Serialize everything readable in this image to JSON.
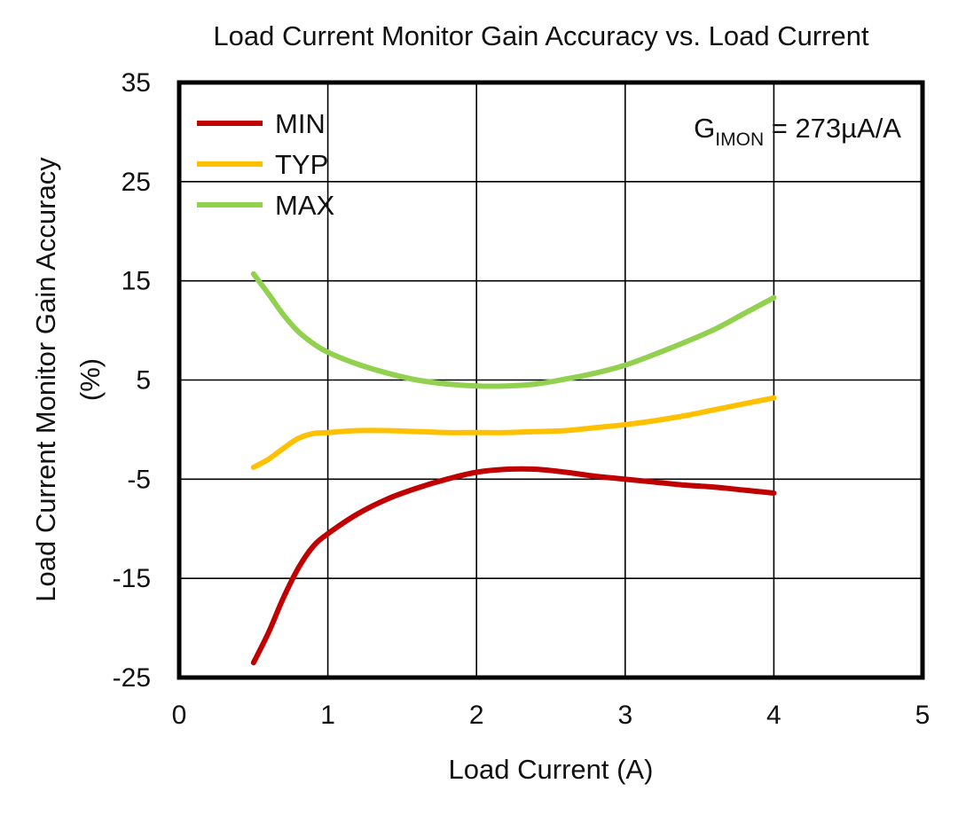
{
  "chart_data": {
    "type": "line",
    "title": "Load Current Monitor Gain Accuracy vs. Load Current",
    "xlabel": "Load Current (A)",
    "ylabel": "Load Current Monitor Gain Accuracy",
    "ylabel_unit": "(%)",
    "xlim": [
      0,
      5
    ],
    "ylim": [
      -25,
      35
    ],
    "xticks": [
      0,
      1,
      2,
      3,
      4,
      5
    ],
    "xtick_labels": [
      "0",
      "1",
      "2",
      "3",
      "4",
      "5"
    ],
    "yticks": [
      35,
      25,
      15,
      5,
      -5,
      -15,
      -25
    ],
    "ytick_labels": [
      "35",
      "25",
      "15",
      "5",
      "-5",
      "-15",
      "-25"
    ],
    "grid": true,
    "legend_position": "top-left",
    "annotation": {
      "main": "G",
      "subscript": "IMON",
      "rest": " = 273µA/A"
    },
    "series": [
      {
        "name": "MIN",
        "color": "#c00000",
        "x": [
          0.5,
          0.6,
          0.7,
          0.8,
          0.9,
          1.0,
          1.2,
          1.4,
          1.6,
          1.8,
          2.0,
          2.2,
          2.4,
          2.6,
          2.8,
          3.0,
          3.2,
          3.4,
          3.6,
          3.8,
          4.0
        ],
        "y": [
          -23.5,
          -20.5,
          -17.0,
          -14.0,
          -11.8,
          -10.5,
          -8.5,
          -7.0,
          -5.9,
          -5.0,
          -4.3,
          -4.0,
          -4.0,
          -4.3,
          -4.7,
          -5.0,
          -5.3,
          -5.6,
          -5.8,
          -6.1,
          -6.4
        ]
      },
      {
        "name": "TYP",
        "color": "#ffc000",
        "x": [
          0.5,
          0.6,
          0.7,
          0.8,
          0.9,
          1.0,
          1.2,
          1.4,
          1.6,
          1.8,
          2.0,
          2.2,
          2.4,
          2.6,
          2.8,
          3.0,
          3.2,
          3.4,
          3.6,
          3.8,
          4.0
        ],
        "y": [
          -3.8,
          -3.0,
          -1.9,
          -0.9,
          -0.4,
          -0.3,
          -0.1,
          -0.1,
          -0.2,
          -0.3,
          -0.3,
          -0.3,
          -0.2,
          -0.1,
          0.2,
          0.5,
          0.9,
          1.4,
          2.0,
          2.6,
          3.2
        ]
      },
      {
        "name": "MAX",
        "color": "#92d050",
        "x": [
          0.5,
          0.6,
          0.7,
          0.8,
          0.9,
          1.0,
          1.2,
          1.4,
          1.6,
          1.8,
          2.0,
          2.2,
          2.4,
          2.6,
          2.8,
          3.0,
          3.2,
          3.4,
          3.6,
          3.8,
          4.0
        ],
        "y": [
          15.7,
          13.7,
          11.6,
          9.9,
          8.7,
          7.8,
          6.6,
          5.7,
          5.0,
          4.6,
          4.4,
          4.4,
          4.6,
          5.1,
          5.7,
          6.5,
          7.6,
          8.8,
          10.1,
          11.7,
          13.3
        ]
      }
    ]
  }
}
